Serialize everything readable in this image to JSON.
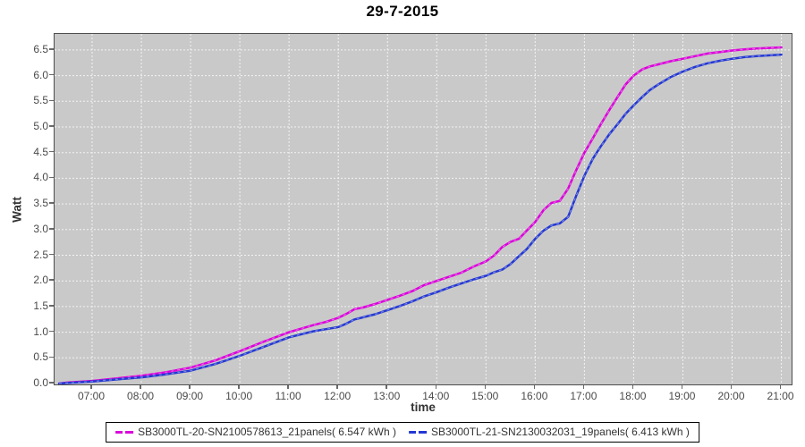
{
  "chart_data": {
    "type": "line",
    "title": "29-7-2015",
    "xlabel": "time",
    "ylabel": "Watt",
    "grid": "white dashed on gray",
    "legend_position": "bottom-center",
    "plot_bg_color": "#c9c9c9",
    "x_ticks": [
      "07:00",
      "08:00",
      "09:00",
      "10:00",
      "11:00",
      "12:00",
      "13:00",
      "14:00",
      "15:00",
      "16:00",
      "17:00",
      "18:00",
      "19:00",
      "20:00",
      "21:00"
    ],
    "y_ticks": [
      "0.0",
      "0.5",
      "1.0",
      "1.5",
      "2.0",
      "2.5",
      "3.0",
      "3.5",
      "4.0",
      "4.5",
      "5.0",
      "5.5",
      "6.0",
      "6.5"
    ],
    "xlim_hours": [
      6.2,
      21.2
    ],
    "ylim": [
      0,
      6.85
    ],
    "x_hours": [
      6.33,
      6.5,
      7,
      7.5,
      8,
      8.5,
      9,
      9.5,
      10,
      10.5,
      11,
      11.25,
      11.5,
      11.75,
      12,
      12.17,
      12.33,
      12.5,
      12.75,
      13,
      13.25,
      13.5,
      13.75,
      14,
      14.25,
      14.5,
      14.75,
      15,
      15.17,
      15.33,
      15.5,
      15.67,
      15.83,
      16,
      16.17,
      16.33,
      16.5,
      16.67,
      16.83,
      17,
      17.17,
      17.33,
      17.5,
      17.67,
      17.83,
      18,
      18.17,
      18.33,
      18.5,
      18.75,
      19,
      19.25,
      19.5,
      19.75,
      20,
      20.25,
      20.5,
      21
    ],
    "series": [
      {
        "name": "SB3000TL-20",
        "label": "SB3000TL-20-SN2100578613_21panels( 6.547 kWh )",
        "total_kwh": 6.547,
        "color": "#da00da",
        "watt": [
          0,
          0.02,
          0.05,
          0.1,
          0.15,
          0.22,
          0.31,
          0.45,
          0.63,
          0.82,
          1.0,
          1.07,
          1.14,
          1.2,
          1.28,
          1.36,
          1.45,
          1.48,
          1.55,
          1.63,
          1.71,
          1.8,
          1.92,
          2.0,
          2.08,
          2.16,
          2.28,
          2.38,
          2.5,
          2.66,
          2.76,
          2.82,
          2.98,
          3.15,
          3.38,
          3.52,
          3.56,
          3.8,
          4.15,
          4.5,
          4.78,
          5.05,
          5.32,
          5.58,
          5.82,
          6.0,
          6.12,
          6.18,
          6.22,
          6.28,
          6.33,
          6.38,
          6.43,
          6.46,
          6.49,
          6.51,
          6.53,
          6.55
        ]
      },
      {
        "name": "SB3000TL-21",
        "label": "SB3000TL-21-SN2130032031_19panels( 6.413 kWh )",
        "total_kwh": 6.413,
        "color": "#2438d2",
        "watt": [
          0,
          0.01,
          0.04,
          0.08,
          0.12,
          0.18,
          0.25,
          0.38,
          0.54,
          0.72,
          0.9,
          0.96,
          1.02,
          1.06,
          1.1,
          1.17,
          1.25,
          1.29,
          1.35,
          1.43,
          1.51,
          1.6,
          1.7,
          1.78,
          1.87,
          1.95,
          2.03,
          2.1,
          2.17,
          2.22,
          2.33,
          2.48,
          2.62,
          2.82,
          2.98,
          3.08,
          3.12,
          3.25,
          3.65,
          4.05,
          4.38,
          4.62,
          4.85,
          5.05,
          5.25,
          5.42,
          5.58,
          5.72,
          5.83,
          5.97,
          6.08,
          6.17,
          6.24,
          6.29,
          6.33,
          6.36,
          6.38,
          6.41
        ]
      }
    ]
  }
}
